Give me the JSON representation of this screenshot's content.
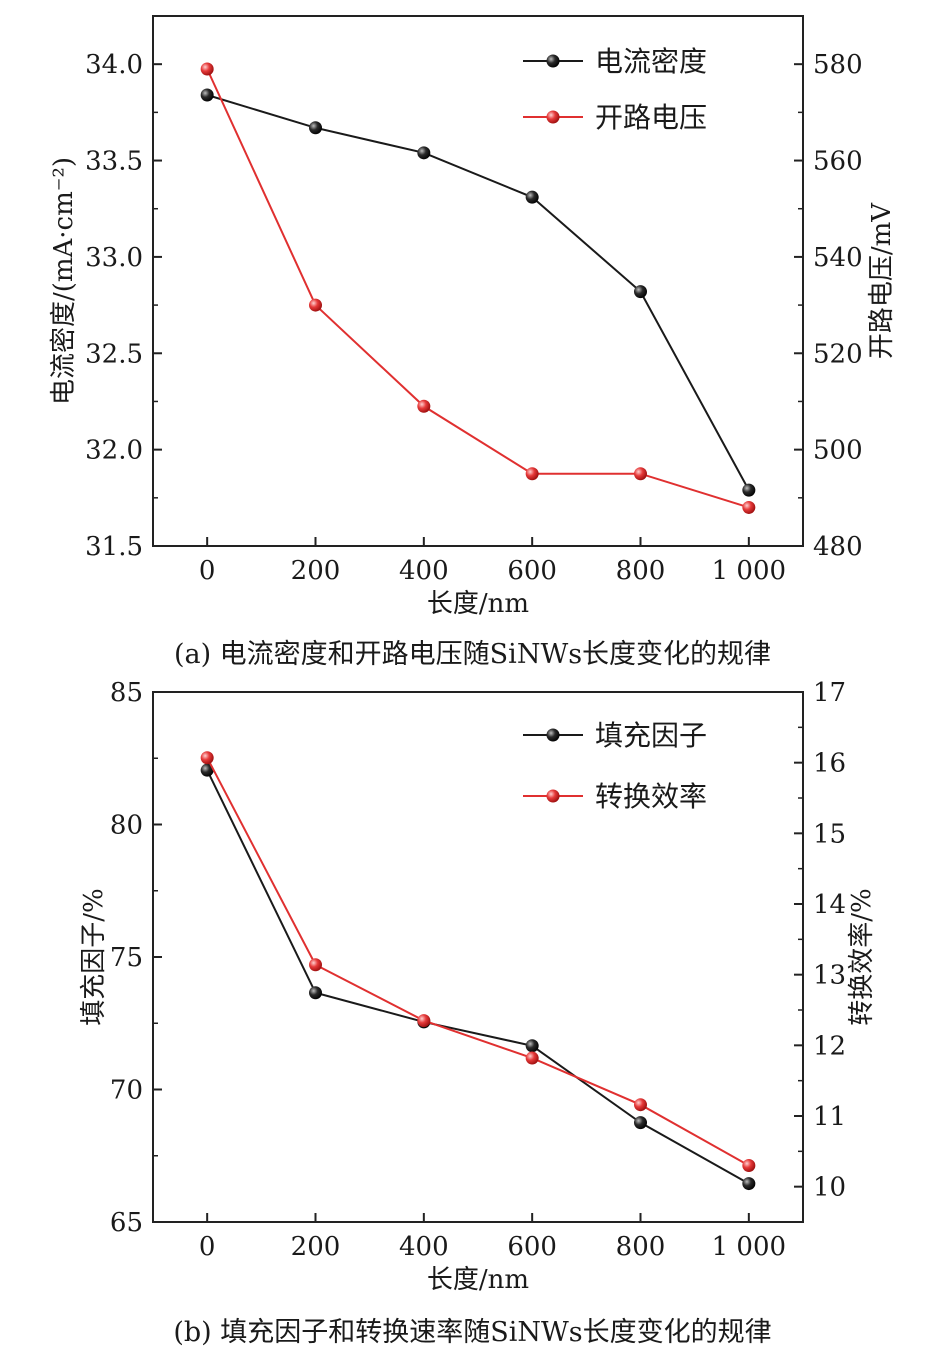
{
  "captions": {
    "a": "(a) 电流密度和开路电压随SiNWs长度变化的规律",
    "b": "(b) 填充因子和转换速率随SiNWs长度变化的规律"
  },
  "colors": {
    "black_series": "#1a1a1a",
    "red_series": "#e03030",
    "axis": "#222222"
  },
  "chart_data": [
    {
      "type": "line",
      "x": [
        0,
        200,
        400,
        600,
        800,
        1000
      ],
      "x_tick_labels": [
        "0",
        "200",
        "400",
        "600",
        "800",
        "1 000"
      ],
      "xlabel": "长度/nm",
      "xlim": [
        -100,
        1100
      ],
      "ylabel_left": "电流密度/(mA·cm⁻²)",
      "ylim_left": [
        31.5,
        34.25
      ],
      "yticks_left": [
        "31.5",
        "32.0",
        "32.5",
        "33.0",
        "33.5",
        "34.0"
      ],
      "ylabel_right": "开路电压/mV",
      "ylim_right": [
        480,
        590
      ],
      "yticks_right": [
        "480",
        "500",
        "520",
        "540",
        "560",
        "580"
      ],
      "legend_position": "top-right",
      "grid": false,
      "series": [
        {
          "name": "电流密度",
          "axis": "left",
          "color": "#1a1a1a",
          "values": [
            33.84,
            33.67,
            33.54,
            33.31,
            32.82,
            31.79
          ]
        },
        {
          "name": "开路电压",
          "axis": "right",
          "color": "#e03030",
          "values": [
            579,
            530,
            509,
            495,
            495,
            488
          ]
        }
      ]
    },
    {
      "type": "line",
      "x": [
        0,
        200,
        400,
        600,
        800,
        1000
      ],
      "x_tick_labels": [
        "0",
        "200",
        "400",
        "600",
        "800",
        "1 000"
      ],
      "xlabel": "长度/nm",
      "xlim": [
        -100,
        1100
      ],
      "ylabel_left": "填充因子/%",
      "ylim_left": [
        65,
        85
      ],
      "yticks_left": [
        "65",
        "70",
        "75",
        "80",
        "85"
      ],
      "ylabel_right": "转换效率/%",
      "ylim_right": [
        9.5,
        17
      ],
      "yticks_right": [
        "10",
        "11",
        "12",
        "13",
        "14",
        "15",
        "16",
        "17"
      ],
      "legend_position": "top-right",
      "grid": false,
      "series": [
        {
          "name": "填充因子",
          "axis": "left",
          "color": "#1a1a1a",
          "values": [
            82.05,
            73.65,
            72.55,
            71.65,
            68.75,
            66.45
          ]
        },
        {
          "name": "转换效率",
          "axis": "right",
          "color": "#e03030",
          "values": [
            16.07,
            13.14,
            12.35,
            11.82,
            11.16,
            10.3
          ]
        }
      ]
    }
  ]
}
